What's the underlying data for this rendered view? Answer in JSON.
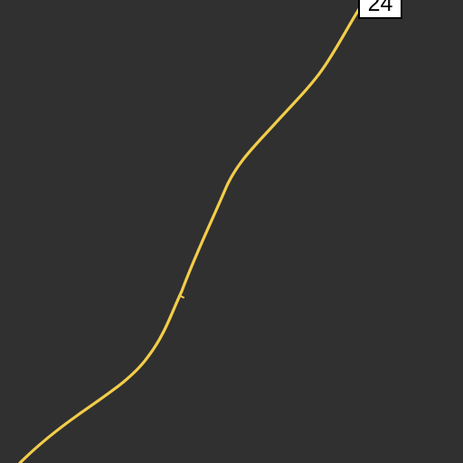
{
  "map": {
    "background_color": "#303030",
    "road_color": "#f3cd4a",
    "route_shield": {
      "number": "24",
      "background_color": "#ffffff",
      "border_color": "#000000"
    }
  }
}
